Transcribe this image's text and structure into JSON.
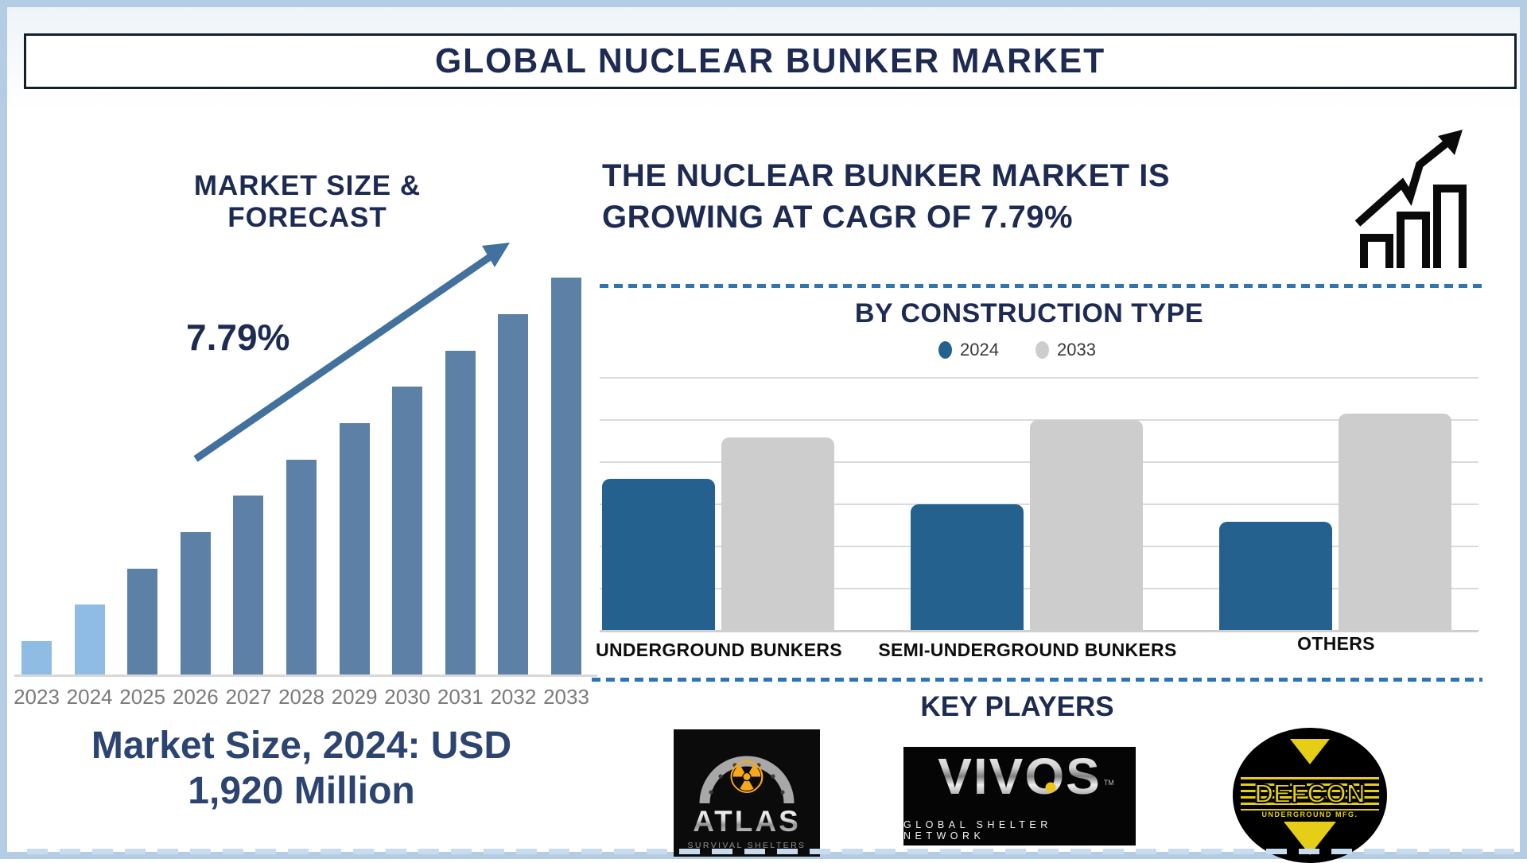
{
  "page": {
    "title": "GLOBAL NUCLEAR BUNKER MARKET"
  },
  "left_chart": {
    "heading": "MARKET SIZE & FORECAST",
    "growth_label": "7.79%",
    "market_size_line1": "Market Size, 2024: USD",
    "market_size_line2": "1,920 Million"
  },
  "right_top": {
    "headline_line1": "THE NUCLEAR BUNKER MARKET IS",
    "headline_line2": "GROWING AT CAGR OF 7.79%"
  },
  "construction_section": {
    "heading": "BY CONSTRUCTION TYPE",
    "legend": [
      {
        "label": "2024",
        "color": "#25618f"
      },
      {
        "label": "2033",
        "color": "#cdcdcd"
      }
    ]
  },
  "key_players_section": {
    "heading": "KEY PLAYERS",
    "players": [
      {
        "name": "ATLAS",
        "subtitle": "SURVIVAL SHELTERS"
      },
      {
        "name": "VIVOS",
        "subtitle": "GLOBAL SHELTER NETWORK",
        "trademark": "TM"
      },
      {
        "name": "DEFCON",
        "subtitle": "UNDERGROUND MFG."
      }
    ]
  },
  "colors": {
    "navy_text": "#1d2b52",
    "footer_navy": "#2c4470",
    "dashed_separator": "#2e75b6",
    "forecast_bar_highlight": "#8fbce4",
    "forecast_bar_base": "#5d81a6",
    "trend_arrow": "#41719c",
    "bar_2024": "#25618f",
    "bar_2033": "#cdcdcd",
    "gridline": "#dadada",
    "year_label_gray": "#7b7b7b",
    "page_border": "#b5cde4"
  },
  "chart_data": [
    {
      "type": "bar",
      "title": "MARKET SIZE & FORECAST",
      "x": [
        "2023",
        "2024",
        "2025",
        "2026",
        "2027",
        "2028",
        "2029",
        "2030",
        "2031",
        "2032",
        "2033"
      ],
      "values_relative": [
        8.6,
        17.8,
        26.8,
        36.0,
        45.2,
        54.2,
        63.4,
        72.6,
        81.6,
        90.8,
        100
      ],
      "value_note": "no numeric axis shown; bars rise linearly; anchored by Market Size 2024 = USD 1,920 Million and CAGR 7.79%",
      "highlight_color": "#8fbce4",
      "base_color": "#5d81a6",
      "highlight_years": [
        "2023",
        "2024"
      ],
      "annotations": [
        "7.79%",
        "Market Size, 2024: USD 1,920 Million"
      ],
      "xlabel": "",
      "ylabel": "",
      "grid": false,
      "legend_position": "none"
    },
    {
      "type": "bar",
      "title": "BY CONSTRUCTION TYPE",
      "categories": [
        "UNDERGROUND BUNKERS",
        "SEMI-UNDERGROUND BUNKERS",
        "OTHERS"
      ],
      "series": [
        {
          "name": "2024",
          "color": "#25618f",
          "values_relative": [
            70,
            58,
            50
          ]
        },
        {
          "name": "2033",
          "color": "#cdcdcd",
          "values_relative": [
            89,
            97,
            100
          ]
        }
      ],
      "value_note": "no numeric axis shown; values are relative heights (max gray bar = 100)",
      "xlabel": "",
      "ylabel": "",
      "grid": true,
      "legend_position": "top-center"
    }
  ]
}
